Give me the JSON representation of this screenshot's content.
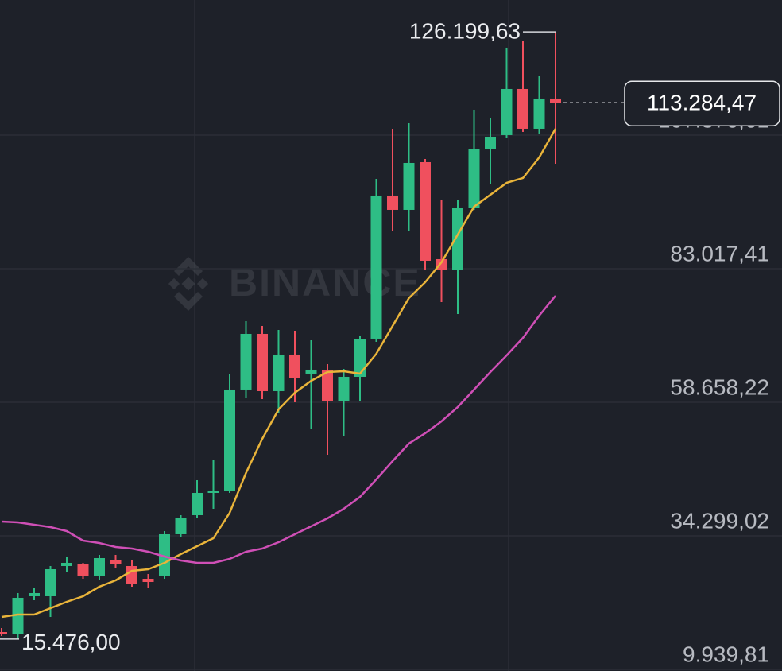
{
  "chart_data": {
    "type": "candlestick",
    "watermark": "BINANCE",
    "colors": {
      "up": "#2ebd85",
      "down": "#f0505e",
      "grid": "#2b2e37",
      "background": "#1e2129"
    },
    "ylim": [
      9650,
      132026
    ],
    "yticks": [
      {
        "value": 9939.81,
        "label": "9.939,81"
      },
      {
        "value": 34299.02,
        "label": "34.299,02"
      },
      {
        "value": 58658.22,
        "label": "58.658,22"
      },
      {
        "value": 83017.41,
        "label": "83.017,41"
      },
      {
        "value": 107376.61,
        "label": "107.376,61"
      }
    ],
    "grid": true,
    "open": [
      16755,
      16320,
      23280,
      23280,
      28790,
      29080,
      27050,
      29950,
      28790,
      26470,
      27050,
      34590,
      38070,
      42130,
      42420,
      60980,
      71130,
      60690,
      67360,
      63880,
      64460,
      58950,
      63300,
      70260,
      96360,
      93750,
      102450,
      84760,
      82730,
      94040,
      104770,
      107380,
      115790,
      108540,
      114050
    ],
    "high": [
      17480,
      23860,
      24730,
      28790,
      30530,
      29370,
      30820,
      30820,
      29950,
      27340,
      35170,
      38070,
      44450,
      48220,
      63880,
      73450,
      72580,
      71855,
      71710,
      69970,
      65620,
      64750,
      70840,
      99405,
      108540,
      109555,
      103030,
      95490,
      95490,
      112020,
      110570,
      123330,
      124490,
      118110,
      126199.63
    ],
    "low": [
      16030,
      15476,
      22555,
      19510,
      27630,
      26470,
      26180,
      28500,
      25020,
      24730,
      26470,
      34010,
      37490,
      39230,
      42130,
      59530,
      59240,
      56630,
      58660,
      53730,
      49090,
      52570,
      58805,
      69680,
      89980,
      89980,
      82730,
      76930,
      74755,
      93750,
      98390,
      106800,
      107960,
      107670,
      102160
    ],
    "close": [
      16320,
      22990,
      23860,
      28210,
      29370,
      27050,
      30240,
      29080,
      25600,
      25890,
      34590,
      37490,
      42130,
      42565,
      60980,
      71130,
      60690,
      67360,
      63010,
      64605,
      58950,
      63300,
      70115,
      96360,
      93750,
      102305,
      84470,
      82730,
      94040,
      104770,
      107090,
      115790,
      108540,
      114050,
      113284.47
    ],
    "series": [
      {
        "color": "#e9b43a",
        "values": [
          19510,
          19945,
          19945,
          21105,
          22265,
          23280,
          25020,
          26180,
          27920,
          28210,
          29370,
          30965,
          32415,
          33865,
          38505,
          45755,
          51990,
          57355,
          60400,
          62575,
          64170,
          64315,
          63880,
          67505,
          72580,
          77655,
          80555,
          84180,
          89255,
          94330,
          96505,
          98680,
          99550,
          103320,
          108540
        ]
      },
      {
        "color": "#cf4fb6",
        "values": [
          36910,
          36765,
          36330,
          35895,
          35170,
          33430,
          32995,
          32270,
          31980,
          31400,
          30530,
          29805,
          29370,
          29370,
          30095,
          31400,
          31980,
          33140,
          34590,
          36040,
          37490,
          39230,
          41405,
          44595,
          47930,
          51120,
          53005,
          55180,
          57790,
          60980,
          64170,
          67215,
          70405,
          74465,
          78090
        ]
      }
    ],
    "annotations": [
      {
        "text": "126.199,63",
        "value": 126199.63
      },
      {
        "text": "15.476,00",
        "value": 15476
      },
      {
        "text": "113.284,47",
        "value": 113284.47
      }
    ]
  }
}
